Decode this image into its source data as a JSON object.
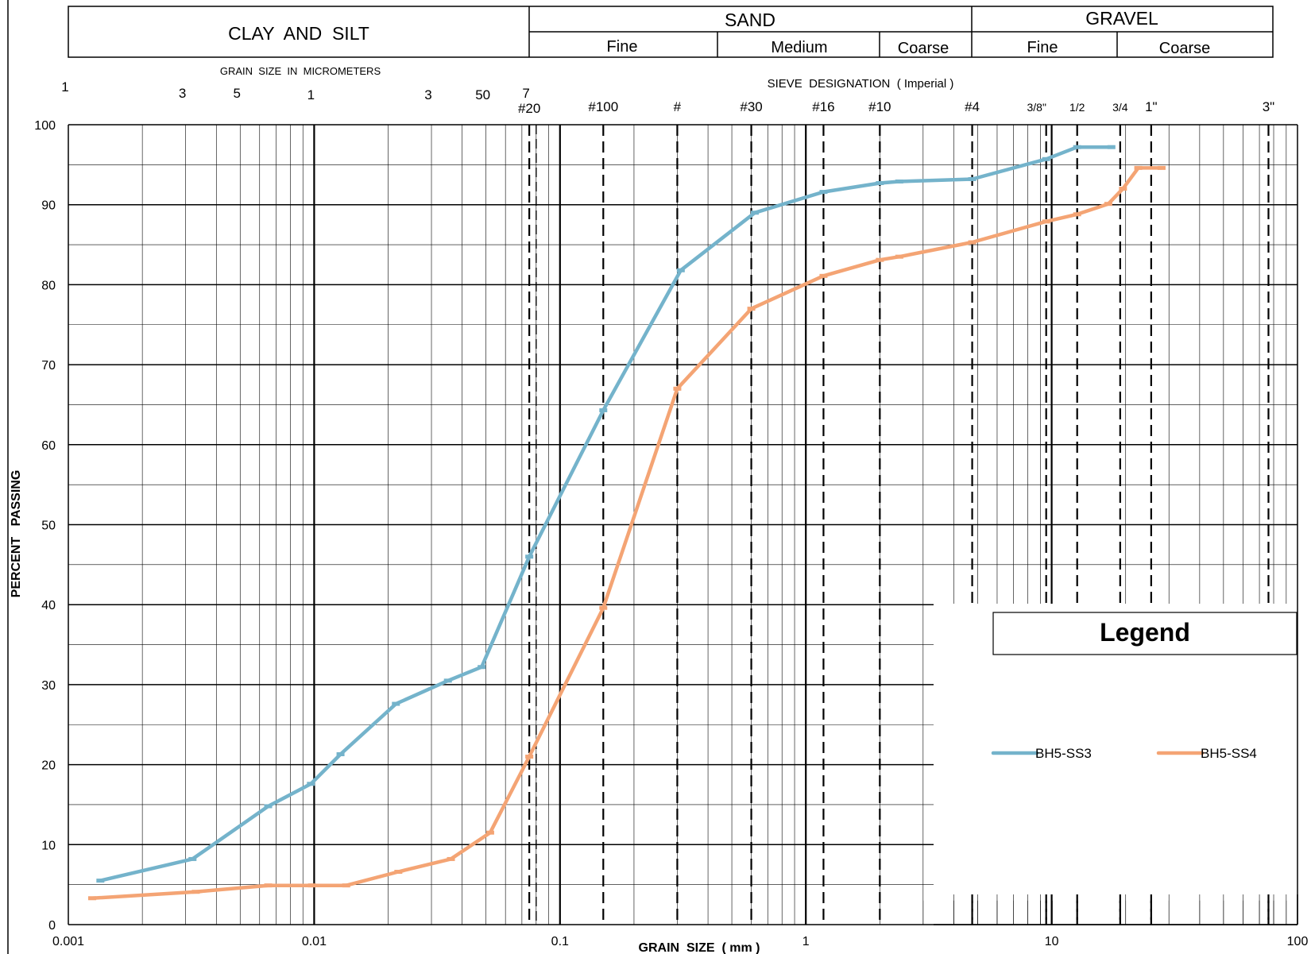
{
  "header": {
    "clay_silt": "CLAY  AND  SILT",
    "sand": "SAND",
    "gravel": "GRAVEL",
    "sand_fine": "Fine",
    "sand_medium": "Medium",
    "sand_coarse": "Coarse",
    "gravel_fine": "Fine",
    "gravel_coarse": "Coarse"
  },
  "micrometer_title": "GRAIN  SIZE  IN  MICROMETERS",
  "micrometer_labels": [
    {
      "x": 0.001,
      "text": "1"
    },
    {
      "x": 0.003,
      "text": "3"
    },
    {
      "x": 0.005,
      "text": "5"
    },
    {
      "x": 0.01,
      "text": "1"
    },
    {
      "x": 0.03,
      "text": "3"
    },
    {
      "x": 0.05,
      "text": "50"
    },
    {
      "x": 0.075,
      "text": "7"
    }
  ],
  "sieve_title": "SIEVE  DESIGNATION  ( Imperial )",
  "sieves": [
    {
      "x": 0.075,
      "text": "#20"
    },
    {
      "x": 0.15,
      "text": "#100"
    },
    {
      "x": 0.3,
      "text": "#"
    },
    {
      "x": 0.6,
      "text": "#30"
    },
    {
      "x": 1.18,
      "text": "#16"
    },
    {
      "x": 2.0,
      "text": "#10"
    },
    {
      "x": 4.75,
      "text": "#4"
    },
    {
      "x": 9.5,
      "text": "3/8\""
    },
    {
      "x": 12.7,
      "text": "1/2"
    },
    {
      "x": 19.0,
      "text": "3/4"
    },
    {
      "x": 25.4,
      "text": "1\""
    },
    {
      "x": 76.2,
      "text": "3\""
    }
  ],
  "legend": {
    "title": "Legend"
  },
  "chart_data": {
    "type": "line",
    "title": "",
    "xlabel": "GRAIN  SIZE  ( mm )",
    "ylabel": "PERCENT   PASSING",
    "xscale": "log",
    "xlim": [
      0.001,
      100
    ],
    "ylim": [
      0,
      100
    ],
    "x_ticks": [
      {
        "value": 0.001,
        "label": "0.001"
      },
      {
        "value": 0.01,
        "label": "0.01"
      },
      {
        "value": 0.1,
        "label": "0.1"
      },
      {
        "value": 1,
        "label": "1"
      },
      {
        "value": 10,
        "label": "10"
      },
      {
        "value": 100,
        "label": "100"
      }
    ],
    "y_ticks": [
      0,
      10,
      20,
      30,
      40,
      50,
      60,
      70,
      80,
      90,
      100
    ],
    "grid": true,
    "legend_position": "bottom-right",
    "series": [
      {
        "name": "BH5-SS3",
        "color": "#74b3cb",
        "points": [
          [
            0.00135,
            5.5
          ],
          [
            0.0032,
            8.2
          ],
          [
            0.0065,
            14.8
          ],
          [
            0.0097,
            17.6
          ],
          [
            0.0128,
            21.3
          ],
          [
            0.0215,
            27.6
          ],
          [
            0.035,
            30.5
          ],
          [
            0.048,
            32.2
          ],
          [
            0.075,
            46.0
          ],
          [
            0.15,
            64.3
          ],
          [
            0.31,
            81.8
          ],
          [
            0.62,
            89.0
          ],
          [
            1.18,
            91.6
          ],
          [
            2.0,
            92.7
          ],
          [
            2.4,
            92.9
          ],
          [
            4.75,
            93.2
          ],
          [
            9.5,
            95.7
          ],
          [
            12.7,
            97.2
          ],
          [
            17.5,
            97.2
          ]
        ]
      },
      {
        "name": "BH5-SS4",
        "color": "#f4a474",
        "points": [
          [
            0.00125,
            3.3
          ],
          [
            0.0033,
            4.1
          ],
          [
            0.0065,
            4.9
          ],
          [
            0.0098,
            4.9
          ],
          [
            0.0135,
            4.9
          ],
          [
            0.022,
            6.6
          ],
          [
            0.036,
            8.2
          ],
          [
            0.052,
            11.5
          ],
          [
            0.075,
            21.0
          ],
          [
            0.15,
            39.6
          ],
          [
            0.3,
            67.0
          ],
          [
            0.6,
            77.0
          ],
          [
            1.18,
            81.1
          ],
          [
            2.0,
            83.1
          ],
          [
            2.4,
            83.5
          ],
          [
            4.75,
            85.3
          ],
          [
            9.5,
            87.9
          ],
          [
            12.7,
            88.8
          ],
          [
            17.0,
            90.1
          ],
          [
            19.5,
            92.0
          ],
          [
            22.5,
            94.6
          ],
          [
            28.0,
            94.6
          ]
        ]
      }
    ]
  }
}
